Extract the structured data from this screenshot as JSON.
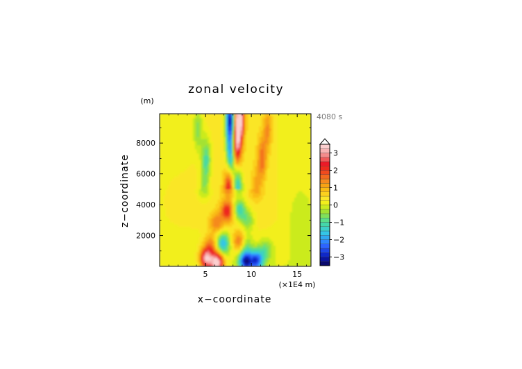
{
  "chart_data": {
    "type": "heatmap",
    "title": "zonal velocity",
    "xlabel": "x−coordinate",
    "ylabel": "z−coordinate",
    "x_unit": "(×1E4 m)",
    "y_unit": "(m)",
    "time_label": "4080 s",
    "xlim": [
      0,
      16.5
    ],
    "ylim": [
      0,
      9900
    ],
    "x_ticks": [
      5,
      10,
      15
    ],
    "x_tick_labels": [
      "5",
      "10",
      "15"
    ],
    "y_ticks": [
      2000,
      4000,
      6000,
      8000
    ],
    "y_tick_labels": [
      "2000",
      "4000",
      "6000",
      "8000"
    ],
    "colorbar": {
      "levels": [
        -3.5,
        -3.25,
        -3,
        -2.75,
        -2.5,
        -2.25,
        -2,
        -1.75,
        -1.5,
        -1.25,
        -1,
        -0.75,
        -0.5,
        -0.25,
        0,
        0.25,
        0.5,
        0.75,
        1,
        1.25,
        1.5,
        1.75,
        2,
        2.25,
        2.5,
        2.75,
        3,
        3.25,
        3.5
      ],
      "colors": [
        "#0a0a6e",
        "#0a14a0",
        "#0f28c8",
        "#1e46e6",
        "#2d64ff",
        "#2f86ff",
        "#30a8f0",
        "#34c6e6",
        "#3ccfc8",
        "#44d7aa",
        "#5ade8a",
        "#80e05a",
        "#a4e232",
        "#cbeb1e",
        "#f2ef1c",
        "#fae628",
        "#fbd11e",
        "#f9bb14",
        "#f7a314",
        "#f58a1e",
        "#f36a1e",
        "#f04a1e",
        "#ee2a1e",
        "#ec1a28",
        "#f05a5a",
        "#f48c8c",
        "#f8b4b4",
        "#fbcfcf"
      ],
      "tick_values": [
        3,
        2,
        1,
        0,
        -1,
        -2,
        -3
      ],
      "tick_labels": [
        "3",
        "2",
        "1",
        "0",
        "−1",
        "−2",
        "−3"
      ],
      "extend": "max"
    },
    "features": [
      {
        "x": 5.1,
        "z": 500,
        "u": 3.0
      },
      {
        "x": 6.3,
        "z": 250,
        "u": 3.4
      },
      {
        "x": 5.6,
        "z": 1400,
        "u": 1.2
      },
      {
        "x": 9.4,
        "z": 350,
        "u": -3.2
      },
      {
        "x": 10.6,
        "z": 400,
        "u": -2.6
      },
      {
        "x": 9.3,
        "z": 1500,
        "u": -1.2
      },
      {
        "x": 11.6,
        "z": 1100,
        "u": -0.9
      },
      {
        "x": 6.9,
        "z": 1500,
        "u": -2.0
      },
      {
        "x": 8.8,
        "z": 1600,
        "u": 1.8
      },
      {
        "x": 6.2,
        "z": 2800,
        "u": 1.1
      },
      {
        "x": 9.6,
        "z": 3000,
        "u": -1.0
      },
      {
        "x": 7.4,
        "z": 3600,
        "u": 1.9
      },
      {
        "x": 8.7,
        "z": 3700,
        "u": -1.6
      },
      {
        "x": 7.6,
        "z": 5300,
        "u": 1.6
      },
      {
        "x": 8.5,
        "z": 5400,
        "u": -1.5
      },
      {
        "x": 7.8,
        "z": 7300,
        "u": -2.6
      },
      {
        "x": 8.4,
        "z": 7700,
        "u": 2.6
      },
      {
        "x": 7.7,
        "z": 9500,
        "u": -3.4
      },
      {
        "x": 8.7,
        "z": 9500,
        "u": 3.5
      },
      {
        "x": 5.1,
        "z": 7000,
        "u": -1.3
      },
      {
        "x": 4.2,
        "z": 8900,
        "u": -0.9
      },
      {
        "x": 4.9,
        "z": 5000,
        "u": -0.7
      },
      {
        "x": 11.2,
        "z": 7000,
        "u": 1.3
      },
      {
        "x": 11.8,
        "z": 8900,
        "u": 1.0
      },
      {
        "x": 10.6,
        "z": 5000,
        "u": 0.8
      }
    ]
  }
}
